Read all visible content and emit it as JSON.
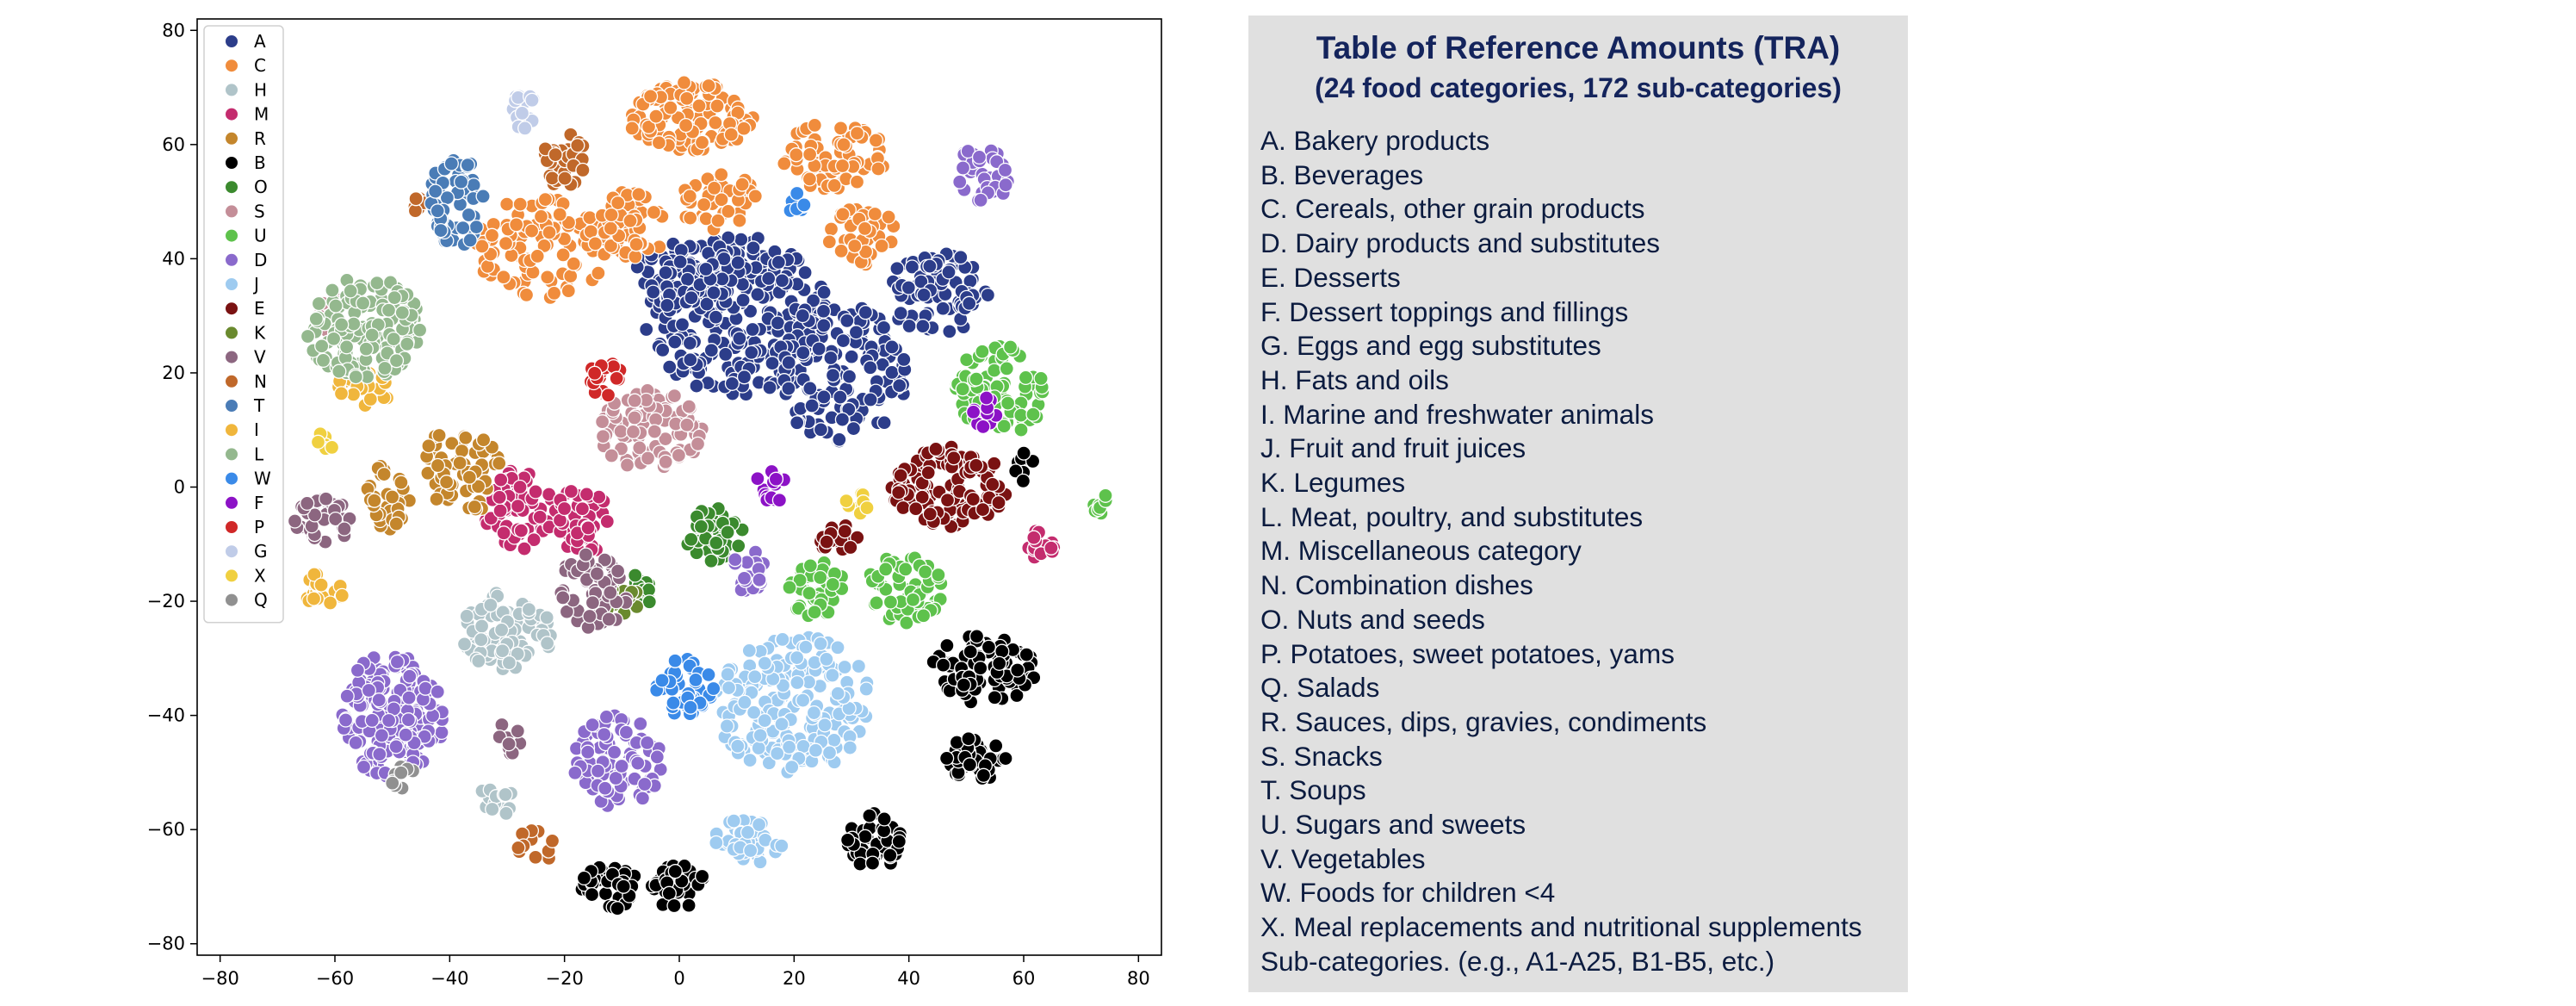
{
  "chart_data": {
    "type": "scatter",
    "title": "",
    "xlabel": "",
    "ylabel": "",
    "xlim": [
      -84,
      84
    ],
    "ylim": [
      -82,
      82
    ],
    "xticks": [
      -80,
      -60,
      -40,
      -20,
      0,
      20,
      40,
      60,
      80
    ],
    "yticks": [
      -80,
      -60,
      -40,
      -20,
      0,
      20,
      40,
      60,
      80
    ],
    "xtick_labels": [
      "−80",
      "−60",
      "−40",
      "−20",
      "0",
      "20",
      "40",
      "60",
      "80"
    ],
    "ytick_labels": [
      "−80",
      "−60",
      "−40",
      "−20",
      "0",
      "20",
      "40",
      "60",
      "80"
    ],
    "grid": false,
    "legend_position": "upper-left",
    "marker_edge_color": "#ffffff",
    "legend": [
      {
        "label": "A",
        "color": "#2c3d8a"
      },
      {
        "label": "C",
        "color": "#f08c3c"
      },
      {
        "label": "H",
        "color": "#b0c4c9"
      },
      {
        "label": "M",
        "color": "#c42c6e"
      },
      {
        "label": "R",
        "color": "#c4862c"
      },
      {
        "label": "B",
        "color": "#000000"
      },
      {
        "label": "O",
        "color": "#3b8a2e"
      },
      {
        "label": "S",
        "color": "#c48e98"
      },
      {
        "label": "U",
        "color": "#5ec24c"
      },
      {
        "label": "D",
        "color": "#8a6acc"
      },
      {
        "label": "J",
        "color": "#9ecbf0"
      },
      {
        "label": "E",
        "color": "#7a1212"
      },
      {
        "label": "K",
        "color": "#6a8a2e"
      },
      {
        "label": "V",
        "color": "#8c6680"
      },
      {
        "label": "N",
        "color": "#c0682a"
      },
      {
        "label": "T",
        "color": "#4a7cb6"
      },
      {
        "label": "I",
        "color": "#f0b63c"
      },
      {
        "label": "L",
        "color": "#94b88e"
      },
      {
        "label": "W",
        "color": "#3a8ae8"
      },
      {
        "label": "F",
        "color": "#8c12c6"
      },
      {
        "label": "P",
        "color": "#d02828"
      },
      {
        "label": "G",
        "color": "#c0cce8"
      },
      {
        "label": "X",
        "color": "#f0d040"
      },
      {
        "label": "Q",
        "color": "#909090"
      }
    ],
    "clusters": [
      {
        "category": "A",
        "cx": 10,
        "cy": 30,
        "rx": 16,
        "ry": 14,
        "n": 260
      },
      {
        "category": "A",
        "cx": 28,
        "cy": 20,
        "rx": 12,
        "ry": 12,
        "n": 150
      },
      {
        "category": "A",
        "cx": 45,
        "cy": 34,
        "rx": 9,
        "ry": 7,
        "n": 80
      },
      {
        "category": "A",
        "cx": 2,
        "cy": 37,
        "rx": 10,
        "ry": 6,
        "n": 80
      },
      {
        "category": "C",
        "cx": 2,
        "cy": 65,
        "rx": 11,
        "ry": 6,
        "n": 110
      },
      {
        "category": "C",
        "cx": -24,
        "cy": 42,
        "rx": 12,
        "ry": 9,
        "n": 110
      },
      {
        "category": "C",
        "cx": 27,
        "cy": 58,
        "rx": 9,
        "ry": 6,
        "n": 70
      },
      {
        "category": "C",
        "cx": 32,
        "cy": 44,
        "rx": 6,
        "ry": 5,
        "n": 40
      },
      {
        "category": "C",
        "cx": -8,
        "cy": 46,
        "rx": 6,
        "ry": 6,
        "n": 50
      },
      {
        "category": "C",
        "cx": 7,
        "cy": 50,
        "rx": 7,
        "ry": 5,
        "n": 40
      },
      {
        "category": "H",
        "cx": -30,
        "cy": -25,
        "rx": 8,
        "ry": 7,
        "n": 90
      },
      {
        "category": "H",
        "cx": -32,
        "cy": -55,
        "rx": 3,
        "ry": 3,
        "n": 15
      },
      {
        "category": "M",
        "cx": -28,
        "cy": -4,
        "rx": 6,
        "ry": 7,
        "n": 70
      },
      {
        "category": "M",
        "cx": -17,
        "cy": -6,
        "rx": 5,
        "ry": 6,
        "n": 50
      },
      {
        "category": "M",
        "cx": 63,
        "cy": -10,
        "rx": 3,
        "ry": 3,
        "n": 15
      },
      {
        "category": "R",
        "cx": -38,
        "cy": 3,
        "rx": 7,
        "ry": 8,
        "n": 70
      },
      {
        "category": "R",
        "cx": -51,
        "cy": -2,
        "rx": 4,
        "ry": 6,
        "n": 35
      },
      {
        "category": "B",
        "cx": 53,
        "cy": -32,
        "rx": 9,
        "ry": 6,
        "n": 90
      },
      {
        "category": "B",
        "cx": 51,
        "cy": -48,
        "rx": 6,
        "ry": 4,
        "n": 45
      },
      {
        "category": "B",
        "cx": 34,
        "cy": -62,
        "rx": 5,
        "ry": 5,
        "n": 45
      },
      {
        "category": "B",
        "cx": -12,
        "cy": -70,
        "rx": 5,
        "ry": 4,
        "n": 35
      },
      {
        "category": "B",
        "cx": 0,
        "cy": -70,
        "rx": 5,
        "ry": 4,
        "n": 35
      },
      {
        "category": "B",
        "cx": 60,
        "cy": 3,
        "rx": 2,
        "ry": 3,
        "n": 8
      },
      {
        "category": "O",
        "cx": 6,
        "cy": -8,
        "rx": 5,
        "ry": 5,
        "n": 45
      },
      {
        "category": "O",
        "cx": -7,
        "cy": -18,
        "rx": 3,
        "ry": 3,
        "n": 15
      },
      {
        "category": "S",
        "cx": -5,
        "cy": 10,
        "rx": 9,
        "ry": 7,
        "n": 100
      },
      {
        "category": "S",
        "cx": -60,
        "cy": 30,
        "rx": 3,
        "ry": 3,
        "n": 10
      },
      {
        "category": "U",
        "cx": 56,
        "cy": 17,
        "rx": 8,
        "ry": 8,
        "n": 80
      },
      {
        "category": "U",
        "cx": 39,
        "cy": -18,
        "rx": 7,
        "ry": 6,
        "n": 60
      },
      {
        "category": "U",
        "cx": 24,
        "cy": -18,
        "rx": 5,
        "ry": 5,
        "n": 40
      },
      {
        "category": "U",
        "cx": 74,
        "cy": -3,
        "rx": 2,
        "ry": 2,
        "n": 8
      },
      {
        "category": "D",
        "cx": -50,
        "cy": -40,
        "rx": 9,
        "ry": 11,
        "n": 180
      },
      {
        "category": "D",
        "cx": -11,
        "cy": -48,
        "rx": 8,
        "ry": 8,
        "n": 90
      },
      {
        "category": "D",
        "cx": 53,
        "cy": 55,
        "rx": 5,
        "ry": 5,
        "n": 35
      },
      {
        "category": "D",
        "cx": 12,
        "cy": -15,
        "rx": 3,
        "ry": 4,
        "n": 20
      },
      {
        "category": "J",
        "cx": 20,
        "cy": -38,
        "rx": 14,
        "ry": 12,
        "n": 200
      },
      {
        "category": "J",
        "cx": 12,
        "cy": -62,
        "rx": 6,
        "ry": 4,
        "n": 40
      },
      {
        "category": "E",
        "cx": 47,
        "cy": 0,
        "rx": 10,
        "ry": 7,
        "n": 110
      },
      {
        "category": "E",
        "cx": 28,
        "cy": -9,
        "rx": 4,
        "ry": 3,
        "n": 20
      },
      {
        "category": "K",
        "cx": -10,
        "cy": -20,
        "rx": 3,
        "ry": 3,
        "n": 15
      },
      {
        "category": "V",
        "cx": -15,
        "cy": -18,
        "rx": 6,
        "ry": 7,
        "n": 60
      },
      {
        "category": "V",
        "cx": -62,
        "cy": -6,
        "rx": 5,
        "ry": 4,
        "n": 35
      },
      {
        "category": "V",
        "cx": -30,
        "cy": -44,
        "rx": 3,
        "ry": 3,
        "n": 15
      },
      {
        "category": "N",
        "cx": -20,
        "cy": 57,
        "rx": 4,
        "ry": 5,
        "n": 35
      },
      {
        "category": "N",
        "cx": -46,
        "cy": 50,
        "rx": 3,
        "ry": 2,
        "n": 10
      },
      {
        "category": "N",
        "cx": -25,
        "cy": -63,
        "rx": 4,
        "ry": 3,
        "n": 12
      },
      {
        "category": "T",
        "cx": -39,
        "cy": 50,
        "rx": 5,
        "ry": 8,
        "n": 60
      },
      {
        "category": "I",
        "cx": -55,
        "cy": 17,
        "rx": 5,
        "ry": 3,
        "n": 25
      },
      {
        "category": "I",
        "cx": -62,
        "cy": -18,
        "rx": 4,
        "ry": 3,
        "n": 20
      },
      {
        "category": "L",
        "cx": -55,
        "cy": 28,
        "rx": 10,
        "ry": 9,
        "n": 150
      },
      {
        "category": "W",
        "cx": 1,
        "cy": -35,
        "rx": 5,
        "ry": 5,
        "n": 45
      },
      {
        "category": "W",
        "cx": 20,
        "cy": 50,
        "rx": 2,
        "ry": 2,
        "n": 8
      },
      {
        "category": "F",
        "cx": 16,
        "cy": 0,
        "rx": 3,
        "ry": 3,
        "n": 15
      },
      {
        "category": "F",
        "cx": 53,
        "cy": 13,
        "rx": 3,
        "ry": 3,
        "n": 10
      },
      {
        "category": "P",
        "cx": -13,
        "cy": 19,
        "rx": 4,
        "ry": 3,
        "n": 20
      },
      {
        "category": "G",
        "cx": -27,
        "cy": 66,
        "rx": 2,
        "ry": 4,
        "n": 15
      },
      {
        "category": "X",
        "cx": 31,
        "cy": -3,
        "rx": 2,
        "ry": 2,
        "n": 8
      },
      {
        "category": "X",
        "cx": -62,
        "cy": 8,
        "rx": 2,
        "ry": 2,
        "n": 6
      },
      {
        "category": "Q",
        "cx": -48,
        "cy": -50,
        "rx": 3,
        "ry": 3,
        "n": 10
      }
    ]
  },
  "tra": {
    "title": "Table of Reference Amounts (TRA)",
    "subtitle": "(24 food categories, 172 sub-categories)",
    "items": [
      "A. Bakery products",
      "B. Beverages",
      "C. Cereals, other grain products",
      "D. Dairy products and substitutes",
      "E. Desserts",
      "F. Dessert toppings and fillings",
      "G. Eggs and egg substitutes",
      "H. Fats and oils",
      "I. Marine and freshwater animals",
      "J. Fruit and fruit juices",
      "K. Legumes",
      "L. Meat, poultry, and substitutes",
      "M. Miscellaneous category",
      "N. Combination dishes",
      "O. Nuts and seeds",
      "P. Potatoes, sweet potatoes, yams",
      "Q. Salads",
      "R. Sauces, dips, gravies, condiments",
      "S. Snacks",
      "T. Soups",
      "U. Sugars and sweets",
      "V. Vegetables",
      "W. Foods for children <4",
      "X. Meal replacements and nutritional supplements"
    ],
    "footer": "Sub-categories. (e.g., A1-A25, B1-B5, etc.)"
  }
}
